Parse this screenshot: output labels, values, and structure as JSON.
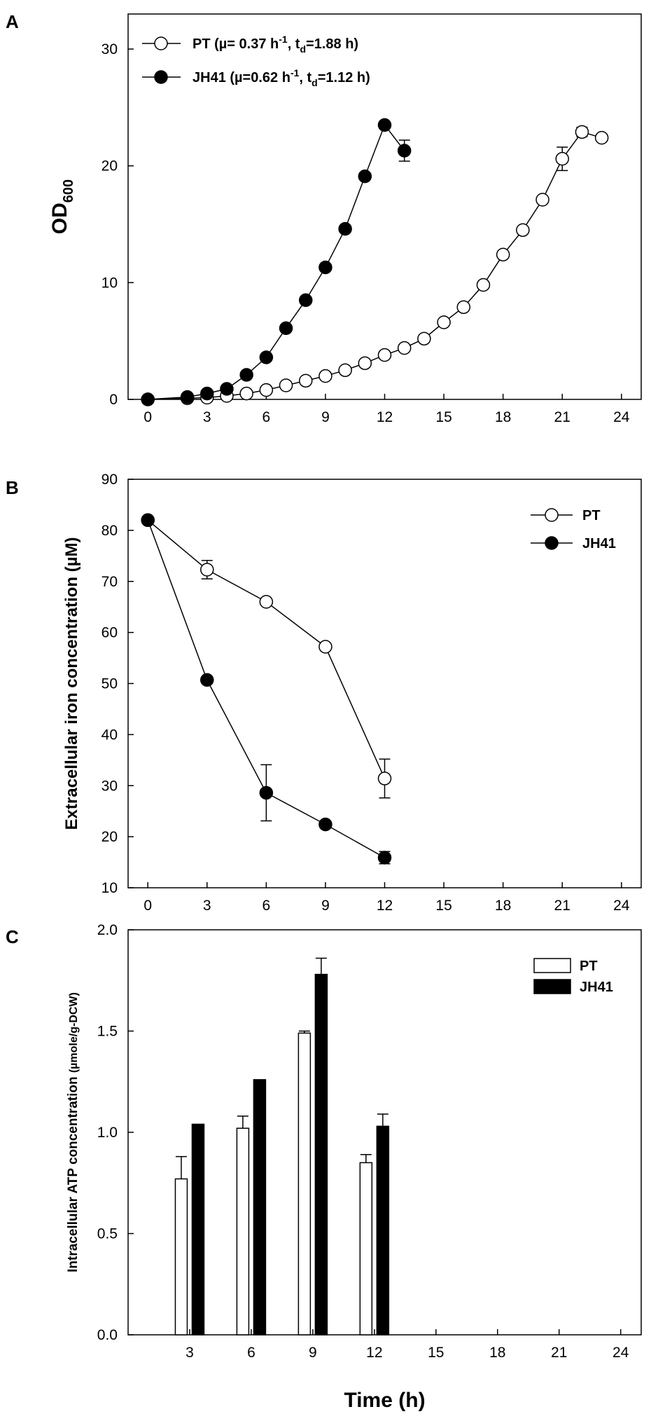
{
  "chart_data": [
    {
      "panel": "A",
      "type": "line",
      "ylabel": "OD",
      "ylabel_sub": "600",
      "xlim": [
        -1,
        25
      ],
      "ylim": [
        0,
        33
      ],
      "xticks": [
        0,
        3,
        6,
        9,
        12,
        15,
        18,
        21,
        24
      ],
      "yticks": [
        0,
        10,
        20,
        30
      ],
      "legend_position": "top-left",
      "series": [
        {
          "name": "PT",
          "legend_label": {
            "prefix": "PT (µ= 0.37 h",
            "sup": "-1",
            "mid": ", t",
            "sub": "d",
            "suffix": "=1.88 h)"
          },
          "marker": "open-circle",
          "x": [
            0,
            2,
            3,
            4,
            5,
            6,
            7,
            8,
            9,
            10,
            11,
            12,
            13,
            14,
            15,
            16,
            17,
            18,
            19,
            20,
            21,
            22,
            23
          ],
          "y": [
            0.0,
            0.1,
            0.15,
            0.3,
            0.5,
            0.8,
            1.2,
            1.6,
            2.0,
            2.5,
            3.1,
            3.8,
            4.4,
            5.2,
            6.6,
            7.9,
            9.8,
            12.4,
            14.5,
            17.1,
            20.6,
            22.9,
            22.4
          ],
          "err": [
            0,
            0,
            0,
            0,
            0,
            0,
            0,
            0,
            0,
            0,
            0,
            0,
            0,
            0,
            0,
            0,
            0,
            0,
            0,
            0,
            1.0,
            0.4,
            0
          ]
        },
        {
          "name": "JH41",
          "legend_label": {
            "prefix": "JH41 (µ=0.62 h",
            "sup": "-1",
            "mid": ", t",
            "sub": "d",
            "suffix": "=1.12 h)"
          },
          "marker": "filled-circle",
          "x": [
            0,
            2,
            3,
            4,
            5,
            6,
            7,
            8,
            9,
            10,
            11,
            12,
            13
          ],
          "y": [
            0.0,
            0.2,
            0.5,
            0.9,
            2.1,
            3.6,
            6.1,
            8.5,
            11.3,
            14.6,
            19.1,
            23.5,
            21.3
          ],
          "err": [
            0,
            0,
            0,
            0,
            0,
            0,
            0,
            0,
            0,
            0,
            0,
            0.3,
            0.9
          ]
        }
      ]
    },
    {
      "panel": "B",
      "type": "line",
      "ylabel": "Extracellular iron concentration (µM)",
      "xlim": [
        -1,
        25
      ],
      "ylim": [
        10,
        90
      ],
      "xticks": [
        0,
        3,
        6,
        9,
        12,
        15,
        18,
        21,
        24
      ],
      "yticks": [
        10,
        20,
        30,
        40,
        50,
        60,
        70,
        80,
        90
      ],
      "legend_position": "top-right",
      "series": [
        {
          "name": "PT",
          "marker": "open-circle",
          "x": [
            0,
            3,
            6,
            9,
            12
          ],
          "y": [
            82.0,
            72.3,
            66.0,
            57.2,
            31.4
          ],
          "err": [
            0,
            1.8,
            0,
            0,
            3.8
          ]
        },
        {
          "name": "JH41",
          "marker": "filled-circle",
          "x": [
            0,
            3,
            6,
            9,
            12
          ],
          "y": [
            82.0,
            50.7,
            28.6,
            22.4,
            15.9
          ],
          "err": [
            0,
            0,
            5.5,
            0,
            1.2
          ]
        }
      ]
    },
    {
      "panel": "C",
      "type": "bar",
      "ylabel": "Intracellular ATP concentration",
      "ylabel_unit": "(µmole/g-DCW)",
      "xlabel": "Time (h)",
      "xlim": [
        0,
        25
      ],
      "ylim": [
        0,
        2.0
      ],
      "xticks": [
        3,
        6,
        9,
        12,
        15,
        18,
        21,
        24
      ],
      "yticks": [
        "0.0",
        "0.5",
        "1.0",
        "1.5",
        "2.0"
      ],
      "legend_position": "top-right",
      "categories": [
        3,
        6,
        9,
        12
      ],
      "series": [
        {
          "name": "PT",
          "fill": "#ffffff",
          "values": [
            0.77,
            1.02,
            1.49,
            0.85
          ],
          "err": [
            0.11,
            0.06,
            0.01,
            0.04
          ]
        },
        {
          "name": "JH41",
          "fill": "#000000",
          "values": [
            1.04,
            1.26,
            1.78,
            1.03
          ],
          "err": [
            0,
            0,
            0.08,
            0.06
          ]
        }
      ]
    }
  ]
}
